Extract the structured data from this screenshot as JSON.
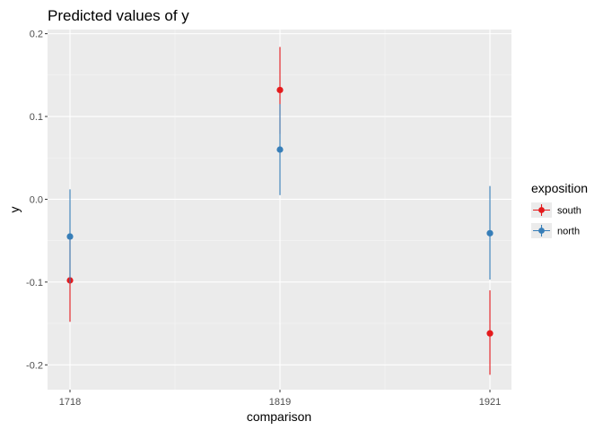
{
  "chart_data": {
    "type": "scatter",
    "title": "Predicted values of y",
    "xlabel": "comparison",
    "ylabel": "y",
    "categories": [
      "1718",
      "1819",
      "1921"
    ],
    "ylim": [
      -0.23,
      0.205
    ],
    "yticks": [
      -0.2,
      -0.1,
      0.0,
      0.1,
      0.2
    ],
    "ytick_labels": [
      "-0.2",
      "-0.1",
      "0.0",
      "0.1",
      "0.2"
    ],
    "grid": true,
    "legend": {
      "title": "exposition",
      "placement": "right"
    },
    "series": [
      {
        "name": "south",
        "color": "#E41A1C",
        "values": [
          -0.098,
          0.132,
          -0.162
        ],
        "lower": [
          -0.148,
          0.079,
          -0.212
        ],
        "upper": [
          -0.047,
          0.184,
          -0.11
        ]
      },
      {
        "name": "north",
        "color": "#377EB8",
        "values": [
          -0.045,
          0.06,
          -0.041
        ],
        "lower": [
          -0.101,
          0.005,
          -0.097
        ],
        "upper": [
          0.012,
          0.115,
          0.016
        ]
      }
    ]
  }
}
